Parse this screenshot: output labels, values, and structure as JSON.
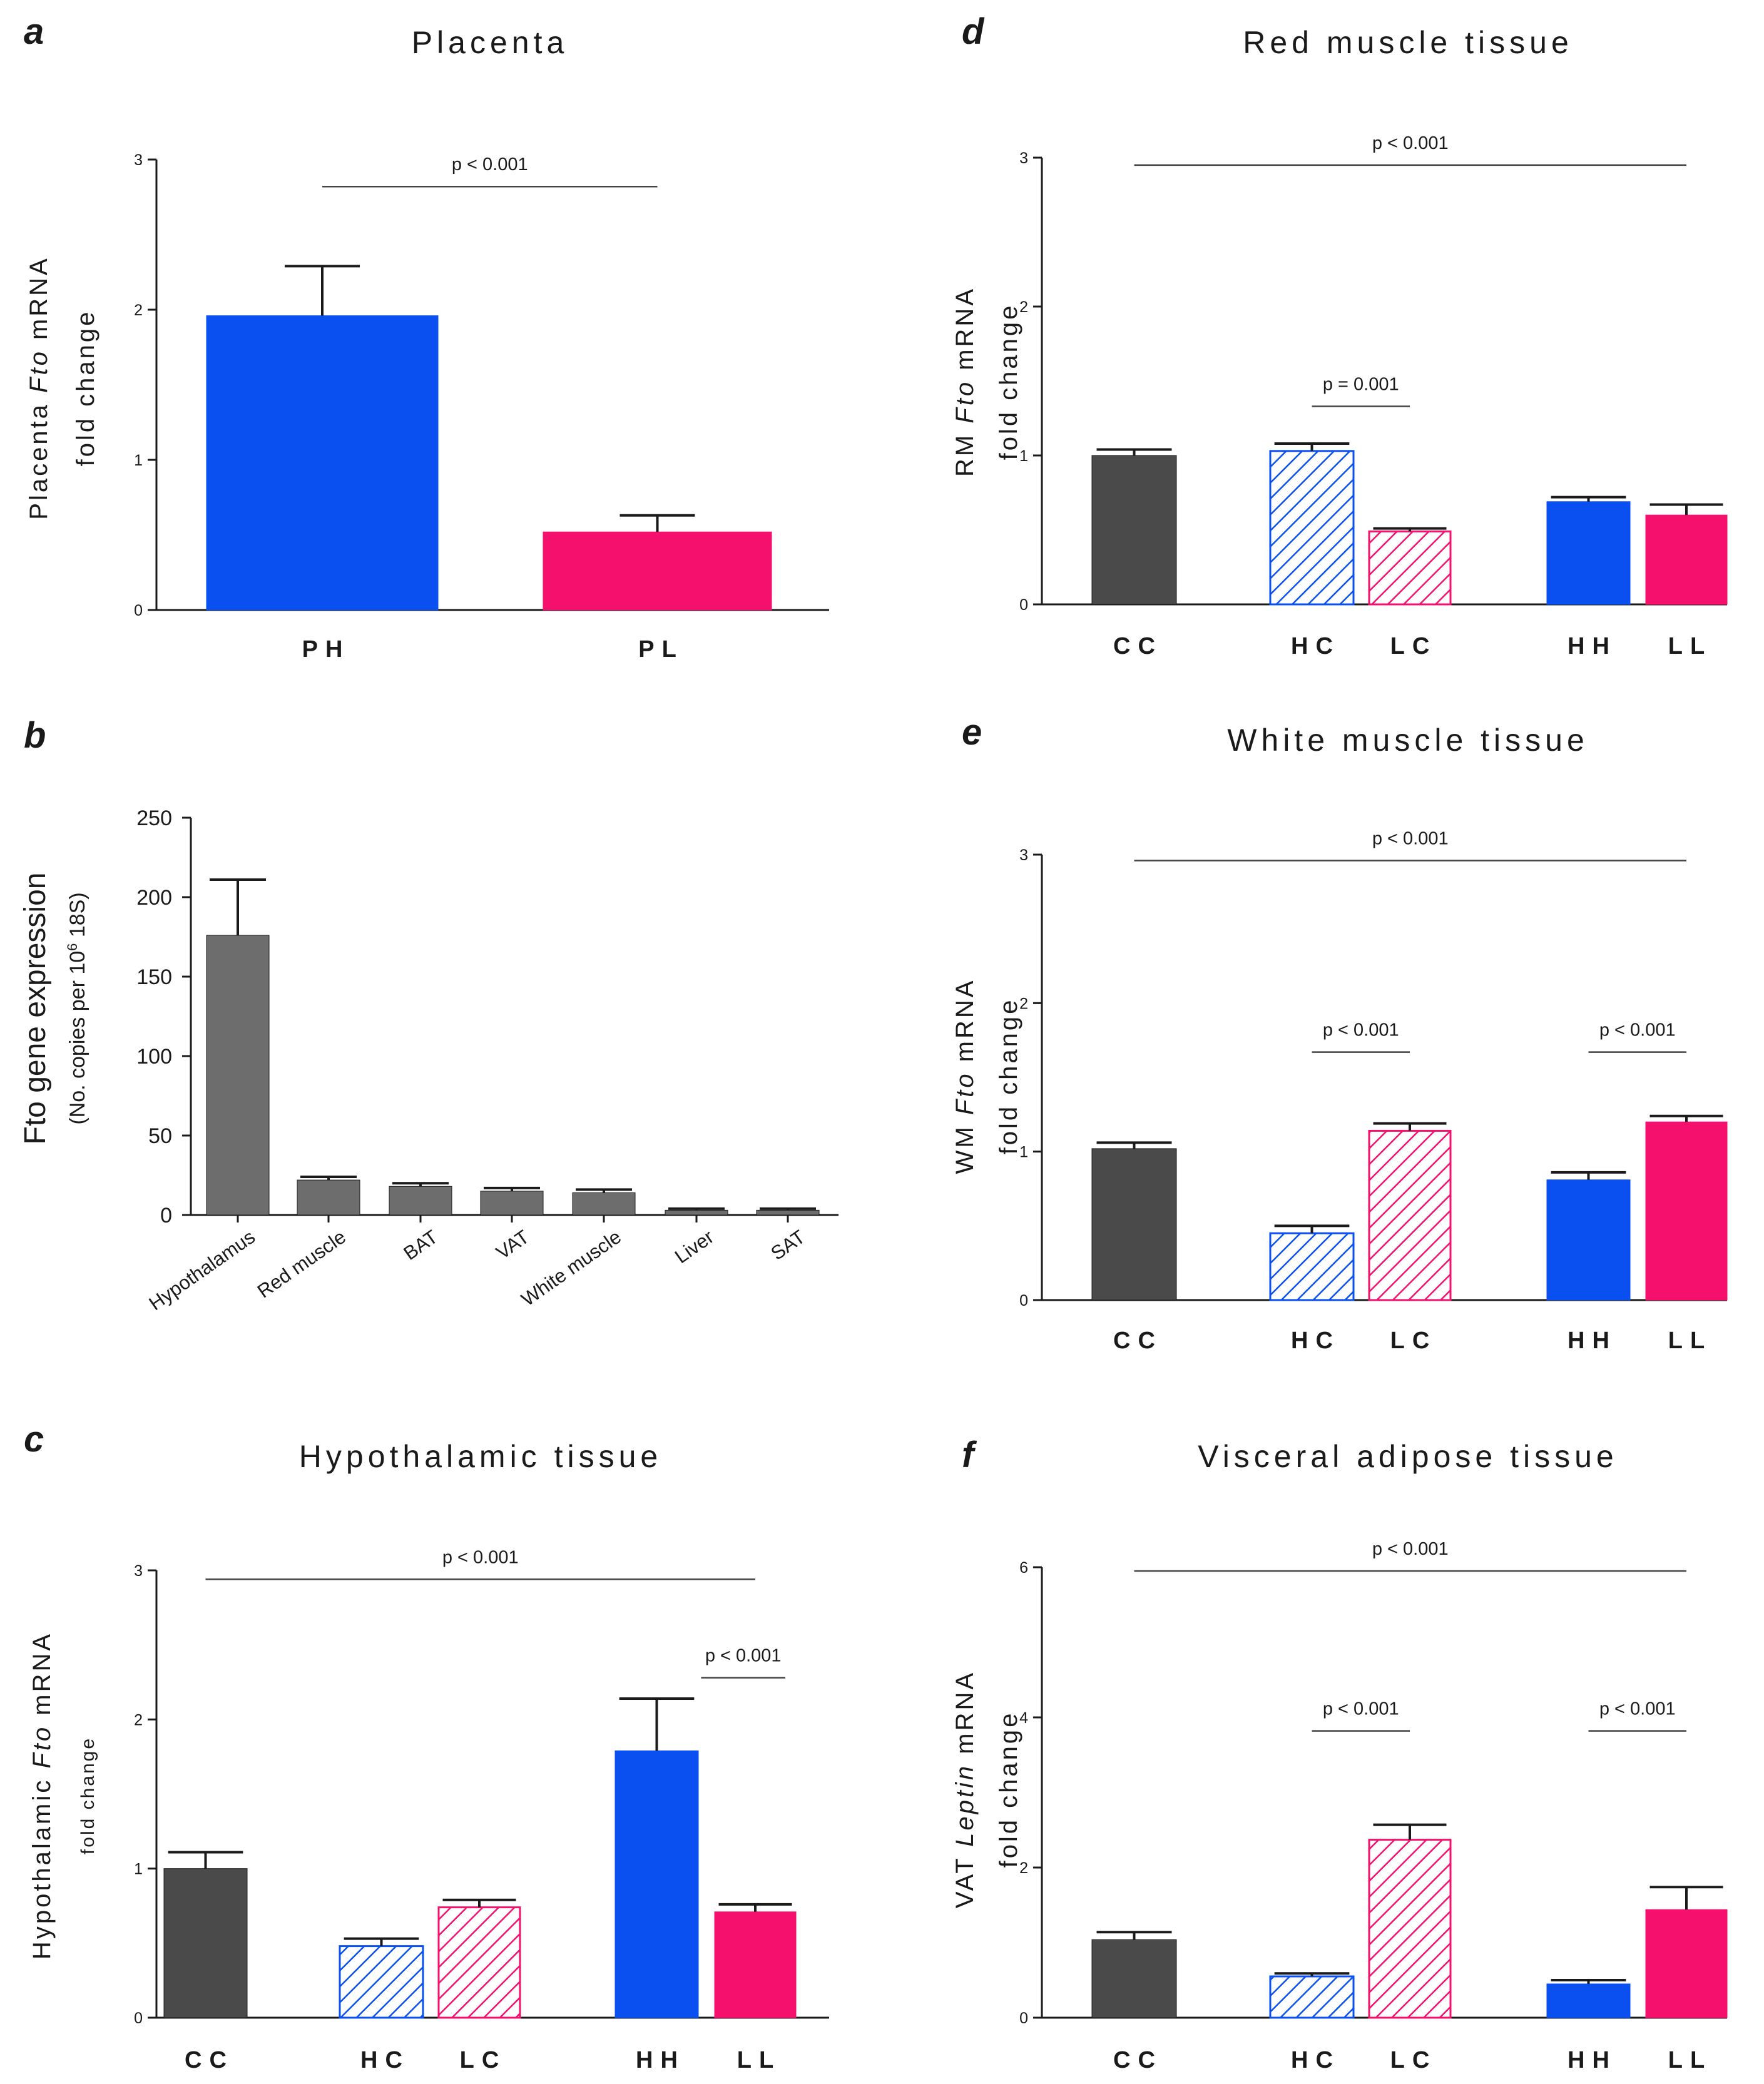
{
  "colors": {
    "control": "#4a4a4a",
    "high": "#0a50f0",
    "low": "#f5106e",
    "axis": "#1a1a1a",
    "grey_bar": "#6d6d6d"
  },
  "chart_data": [
    {
      "id": "a",
      "letter": "a",
      "type": "bar",
      "title": "Placenta",
      "ylabel_pre": "Placenta ",
      "ylabel_gene": "Fto",
      "ylabel_post": " mRNA",
      "ylabel2": "fold change",
      "ylim": [
        0,
        3
      ],
      "yticks": [
        "0",
        "1",
        "2",
        "3"
      ],
      "categories": [
        "PH",
        "PL"
      ],
      "values": [
        1.96,
        0.52
      ],
      "errors": [
        0.33,
        0.11
      ],
      "fills": [
        "high",
        "low"
      ],
      "sig": [
        {
          "label": "p < 0.001",
          "from": 0,
          "to": 1,
          "y": 2.82
        }
      ]
    },
    {
      "id": "b",
      "letter": "b",
      "type": "bar",
      "title": "",
      "ylabel": "Fto gene expression",
      "ylabel2_pre": "(No. copies per 10",
      "ylabel2_sup": "6",
      "ylabel2_post": " 18S)",
      "ylim": [
        0,
        250
      ],
      "yticks": [
        "0",
        "50",
        "100",
        "150",
        "200",
        "250"
      ],
      "categories": [
        "Hypothalamus",
        "Red muscle",
        "BAT",
        "VAT",
        "White muscle",
        "Liver",
        "SAT"
      ],
      "values": [
        176,
        22,
        18,
        15,
        14,
        3,
        3
      ],
      "errors": [
        35,
        2,
        2,
        2,
        2,
        1,
        1
      ]
    },
    {
      "id": "c",
      "letter": "c",
      "type": "bar",
      "title": "Hypothalamic tissue",
      "ylabel_pre": "Hypothalamic ",
      "ylabel_gene": "Fto",
      "ylabel_post": " mRNA",
      "ylabel2": "fold change",
      "ylim": [
        0,
        3
      ],
      "yticks": [
        "0",
        "1",
        "2",
        "3"
      ],
      "categories": [
        "CC",
        "HC",
        "LC",
        "HH",
        "LL"
      ],
      "values": [
        1.0,
        0.48,
        0.74,
        1.79,
        0.71
      ],
      "errors": [
        0.11,
        0.05,
        0.05,
        0.35,
        0.05
      ],
      "fills": [
        "control",
        "high-hatch",
        "low-hatch",
        "high",
        "low"
      ],
      "sig": [
        {
          "label": "p < 0.001",
          "from": 0,
          "to": 4,
          "y": 2.94
        },
        {
          "label": "p < 0.001",
          "from": 3.45,
          "to": 4.3,
          "y": 2.28
        }
      ]
    },
    {
      "id": "d",
      "letter": "d",
      "type": "bar",
      "title": "Red muscle tissue",
      "ylabel_pre": "RM ",
      "ylabel_gene": "Fto",
      "ylabel_post": " mRNA",
      "ylabel2": "fold change",
      "ylim": [
        0,
        3
      ],
      "yticks": [
        "0",
        "1",
        "2",
        "3"
      ],
      "categories": [
        "CC",
        "HC",
        "LC",
        "HH",
        "LL"
      ],
      "values": [
        1.0,
        1.03,
        0.49,
        0.69,
        0.6
      ],
      "errors": [
        0.04,
        0.05,
        0.02,
        0.03,
        0.07
      ],
      "fills": [
        "control",
        "high-hatch",
        "low-hatch",
        "high",
        "low"
      ],
      "sig": [
        {
          "label": "p < 0.001",
          "from": 0,
          "to": 4,
          "y": 2.95
        },
        {
          "label": "p = 0.001",
          "from": 1.0,
          "to": 2.0,
          "y": 1.33
        }
      ]
    },
    {
      "id": "e",
      "letter": "e",
      "type": "bar",
      "title": "White muscle tissue",
      "ylabel_pre": "WM ",
      "ylabel_gene": "Fto",
      "ylabel_post": " mRNA",
      "ylabel2": "fold change",
      "ylim": [
        0,
        3
      ],
      "yticks": [
        "0",
        "1",
        "2",
        "3"
      ],
      "categories": [
        "CC",
        "HC",
        "LC",
        "HH",
        "LL"
      ],
      "values": [
        1.02,
        0.45,
        1.14,
        0.81,
        1.2
      ],
      "errors": [
        0.04,
        0.05,
        0.05,
        0.05,
        0.04
      ],
      "fills": [
        "control",
        "high-hatch",
        "low-hatch",
        "high",
        "low"
      ],
      "sig": [
        {
          "label": "p < 0.001",
          "from": 0,
          "to": 4,
          "y": 2.96
        },
        {
          "label": "p < 0.001",
          "from": 1.0,
          "to": 2.0,
          "y": 1.67
        },
        {
          "label": "p < 0.001",
          "from": 3.0,
          "to": 4.0,
          "y": 1.67
        }
      ]
    },
    {
      "id": "f",
      "letter": "f",
      "type": "bar",
      "title": "Visceral adipose tissue",
      "ylabel_pre": "VAT ",
      "ylabel_gene": "Leptin",
      "ylabel_post": " mRNA",
      "ylabel2": "fold change",
      "ylim": [
        0,
        6
      ],
      "yticks": [
        "0",
        "2",
        "4",
        "6"
      ],
      "categories": [
        "CC",
        "HC",
        "LC",
        "HH",
        "LL"
      ],
      "values": [
        1.04,
        0.55,
        2.37,
        0.45,
        1.44
      ],
      "errors": [
        0.1,
        0.04,
        0.2,
        0.05,
        0.3
      ],
      "fills": [
        "control",
        "high-hatch",
        "low-hatch",
        "high",
        "low"
      ],
      "sig": [
        {
          "label": "p < 0.001",
          "from": 0,
          "to": 4,
          "y": 5.95
        },
        {
          "label": "p < 0.001",
          "from": 1.0,
          "to": 2.0,
          "y": 3.82
        },
        {
          "label": "p < 0.001",
          "from": 3.0,
          "to": 4.0,
          "y": 3.82
        }
      ]
    }
  ]
}
